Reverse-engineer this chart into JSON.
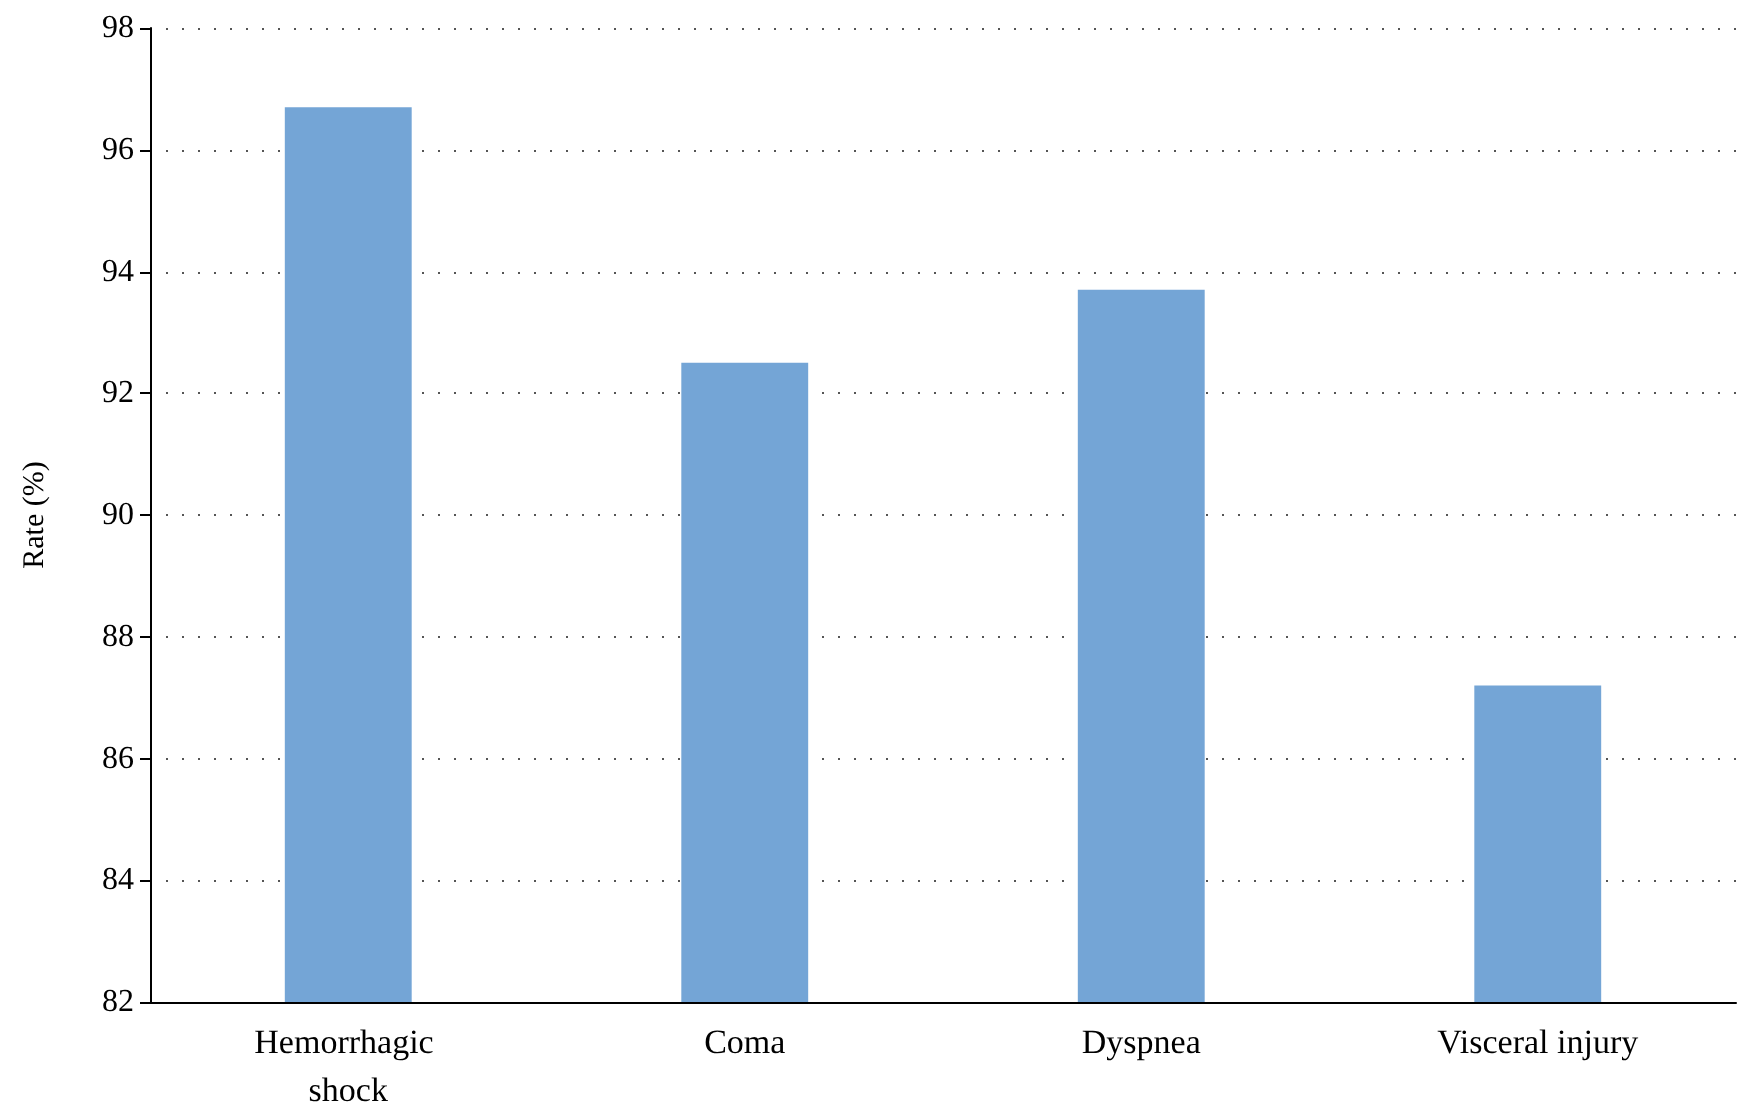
{
  "chart_data": {
    "type": "bar",
    "ylabel": "Rate (%)",
    "categories": [
      "Hemorrhagic shock",
      "Coma",
      "Dyspnea",
      "Visceral injury"
    ],
    "values": [
      96.7,
      92.5,
      93.7,
      87.2
    ],
    "color": "#74a5d6",
    "ylim": [
      82,
      98
    ],
    "yticks": [
      82,
      84,
      86,
      88,
      90,
      92,
      94,
      96,
      98
    ],
    "grid": "y"
  }
}
